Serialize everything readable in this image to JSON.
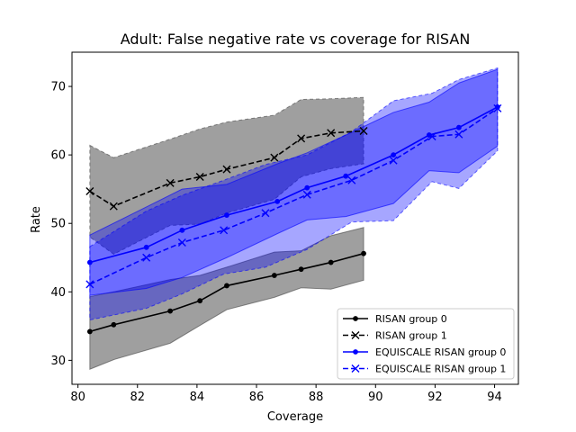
{
  "chart_data": {
    "type": "line",
    "title": "Adult: False negative rate vs coverage for RISAN",
    "xlabel": "Coverage",
    "ylabel": "Rate",
    "xlim": [
      79.8,
      94.8
    ],
    "ylim": [
      26.5,
      75.0
    ],
    "xticks": [
      80,
      82,
      84,
      86,
      88,
      90,
      92,
      94
    ],
    "yticks": [
      30,
      40,
      50,
      60,
      70
    ],
    "grid": false,
    "legend_position": "lower right",
    "series": [
      {
        "name": "RISAN group 0",
        "color": "#000000",
        "linestyle": "solid",
        "marker": "dot",
        "band_color": "#7f7f7f",
        "x": [
          80.4,
          81.2,
          83.1,
          84.1,
          85.0,
          86.6,
          87.5,
          88.5,
          89.6
        ],
        "y": [
          34.2,
          35.2,
          37.2,
          38.7,
          40.9,
          42.4,
          43.3,
          44.3,
          45.6
        ],
        "lower": [
          28.7,
          30.1,
          32.5,
          35.1,
          37.4,
          39.2,
          40.6,
          40.4,
          41.7
        ],
        "upper": [
          39.3,
          40.0,
          41.8,
          42.4,
          43.6,
          45.8,
          46.0,
          48.2,
          49.4
        ]
      },
      {
        "name": "RISAN group 1",
        "color": "#000000",
        "linestyle": "dashed",
        "marker": "x",
        "band_color": "#7f7f7f",
        "x": [
          80.4,
          81.2,
          83.1,
          84.1,
          85.0,
          86.6,
          87.5,
          88.5,
          89.6
        ],
        "y": [
          54.7,
          52.5,
          55.9,
          56.8,
          57.9,
          59.6,
          62.4,
          63.2,
          63.5
        ],
        "lower": [
          48.0,
          45.5,
          49.7,
          49.9,
          51.5,
          53.5,
          56.8,
          58.0,
          58.7
        ],
        "upper": [
          61.4,
          59.6,
          62.3,
          63.8,
          64.8,
          65.8,
          68.1,
          68.2,
          68.4
        ]
      },
      {
        "name": "EQUISCALE RISAN group 0",
        "color": "#0000ff",
        "linestyle": "solid",
        "marker": "dot",
        "band_color": "#0000ff",
        "x": [
          80.4,
          82.3,
          83.5,
          85.0,
          86.7,
          87.7,
          89.0,
          90.6,
          91.8,
          92.8,
          94.1
        ],
        "y": [
          44.3,
          46.5,
          49.0,
          51.2,
          53.2,
          55.2,
          56.9,
          60.0,
          62.9,
          64.0,
          67.0
        ],
        "lower": [
          39.5,
          40.5,
          42.1,
          45.0,
          48.5,
          50.5,
          51.0,
          52.9,
          57.7,
          57.4,
          61.3
        ],
        "upper": [
          48.3,
          52.4,
          55.0,
          55.7,
          58.7,
          60.3,
          62.9,
          66.2,
          67.7,
          70.5,
          72.5
        ]
      },
      {
        "name": "EQUISCALE RISAN group 1",
        "color": "#0000ff",
        "linestyle": "dashed",
        "marker": "x",
        "band_color": "#0000ff",
        "x": [
          80.4,
          82.3,
          83.5,
          84.9,
          86.3,
          87.7,
          89.2,
          90.6,
          91.9,
          92.8,
          94.1
        ],
        "y": [
          41.1,
          45.0,
          47.2,
          49.0,
          51.5,
          54.2,
          56.3,
          59.2,
          62.7,
          63.0,
          66.8
        ],
        "lower": [
          35.9,
          37.6,
          39.7,
          42.6,
          43.6,
          46.2,
          50.2,
          50.4,
          56.1,
          55.1,
          60.6
        ],
        "upper": [
          46.6,
          51.8,
          54.1,
          56.3,
          58.6,
          60.0,
          63.4,
          67.9,
          69.0,
          71.0,
          72.7
        ]
      }
    ]
  }
}
